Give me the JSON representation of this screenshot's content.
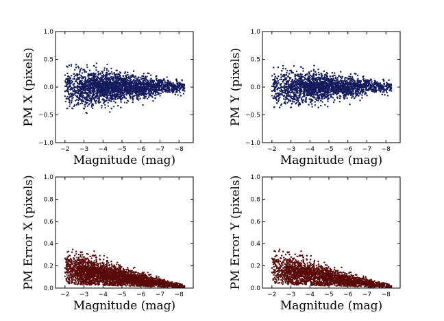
{
  "chart_data": [
    {
      "type": "scatter",
      "xlabel": "Magnitude (mag)",
      "ylabel": "PM X (pixels)",
      "xlim": [
        -1.5,
        -8.75
      ],
      "ylim": [
        -1.0,
        1.0
      ],
      "xticks": [
        -2,
        -3,
        -4,
        -5,
        -6,
        -7,
        -8
      ],
      "yticks": [
        -1.0,
        -0.5,
        0.0,
        0.5,
        1.0
      ],
      "xtick_labels": [
        "−2",
        "−3",
        "−4",
        "−5",
        "−6",
        "−7",
        "−8"
      ],
      "ytick_labels": [
        "−1.0",
        "−0.5",
        "0.0",
        "0.5",
        "1.0"
      ],
      "marker_color": "#141c5e",
      "distribution": {
        "x_range": [
          -2.0,
          -8.3
        ],
        "x_peak": -4.0,
        "center": 0.0,
        "spread_at_bright": 0.18,
        "spread_at_faint": 0.05,
        "approx_points": 4000
      }
    },
    {
      "type": "scatter",
      "xlabel": "Magnitude (mag)",
      "ylabel": "PM Y (pixels)",
      "xlim": [
        -1.5,
        -8.75
      ],
      "ylim": [
        -1.0,
        1.0
      ],
      "xticks": [
        -2,
        -3,
        -4,
        -5,
        -6,
        -7,
        -8
      ],
      "yticks": [
        -1.0,
        -0.5,
        0.0,
        0.5,
        1.0
      ],
      "xtick_labels": [
        "−2",
        "−3",
        "−4",
        "−5",
        "−6",
        "−7",
        "−8"
      ],
      "ytick_labels": [
        "−1.0",
        "−0.5",
        "0.0",
        "0.5",
        "1.0"
      ],
      "marker_color": "#141c5e",
      "distribution": {
        "x_range": [
          -2.0,
          -8.3
        ],
        "x_peak": -4.0,
        "center": 0.0,
        "spread_at_bright": 0.17,
        "spread_at_faint": 0.05,
        "approx_points": 4000
      }
    },
    {
      "type": "scatter",
      "xlabel": "Magnitude (mag)",
      "ylabel": "PM Error X (pixels)",
      "xlim": [
        -1.5,
        -8.75
      ],
      "ylim": [
        0.0,
        1.0
      ],
      "xticks": [
        -2,
        -3,
        -4,
        -5,
        -6,
        -7,
        -8
      ],
      "yticks": [
        0.0,
        0.2,
        0.4,
        0.6,
        0.8,
        1.0
      ],
      "xtick_labels": [
        "−2",
        "−3",
        "−4",
        "−5",
        "−6",
        "−7",
        "−8"
      ],
      "ytick_labels": [
        "0.0",
        "0.2",
        "0.4",
        "0.6",
        "0.8",
        "1.0"
      ],
      "marker_color": "#5a0a0a",
      "distribution": {
        "x_range": [
          -2.0,
          -8.3
        ],
        "x_peak": -3.2,
        "error_at_bright": 0.14,
        "error_at_faint": 0.01,
        "max_error": 0.35,
        "approx_points": 4000
      }
    },
    {
      "type": "scatter",
      "xlabel": "Magnitude (mag)",
      "ylabel": "PM Error Y (pixels)",
      "xlim": [
        -1.5,
        -8.75
      ],
      "ylim": [
        0.0,
        1.0
      ],
      "xticks": [
        -2,
        -3,
        -4,
        -5,
        -6,
        -7,
        -8
      ],
      "yticks": [
        0.0,
        0.2,
        0.4,
        0.6,
        0.8,
        1.0
      ],
      "xtick_labels": [
        "−2",
        "−3",
        "−4",
        "−5",
        "−6",
        "−7",
        "−8"
      ],
      "ytick_labels": [
        "0.0",
        "0.2",
        "0.4",
        "0.6",
        "0.8",
        "1.0"
      ],
      "marker_color": "#5a0a0a",
      "distribution": {
        "x_range": [
          -2.0,
          -8.3
        ],
        "x_peak": -3.2,
        "error_at_bright": 0.14,
        "error_at_faint": 0.01,
        "max_error": 0.36,
        "approx_points": 4000
      }
    }
  ]
}
